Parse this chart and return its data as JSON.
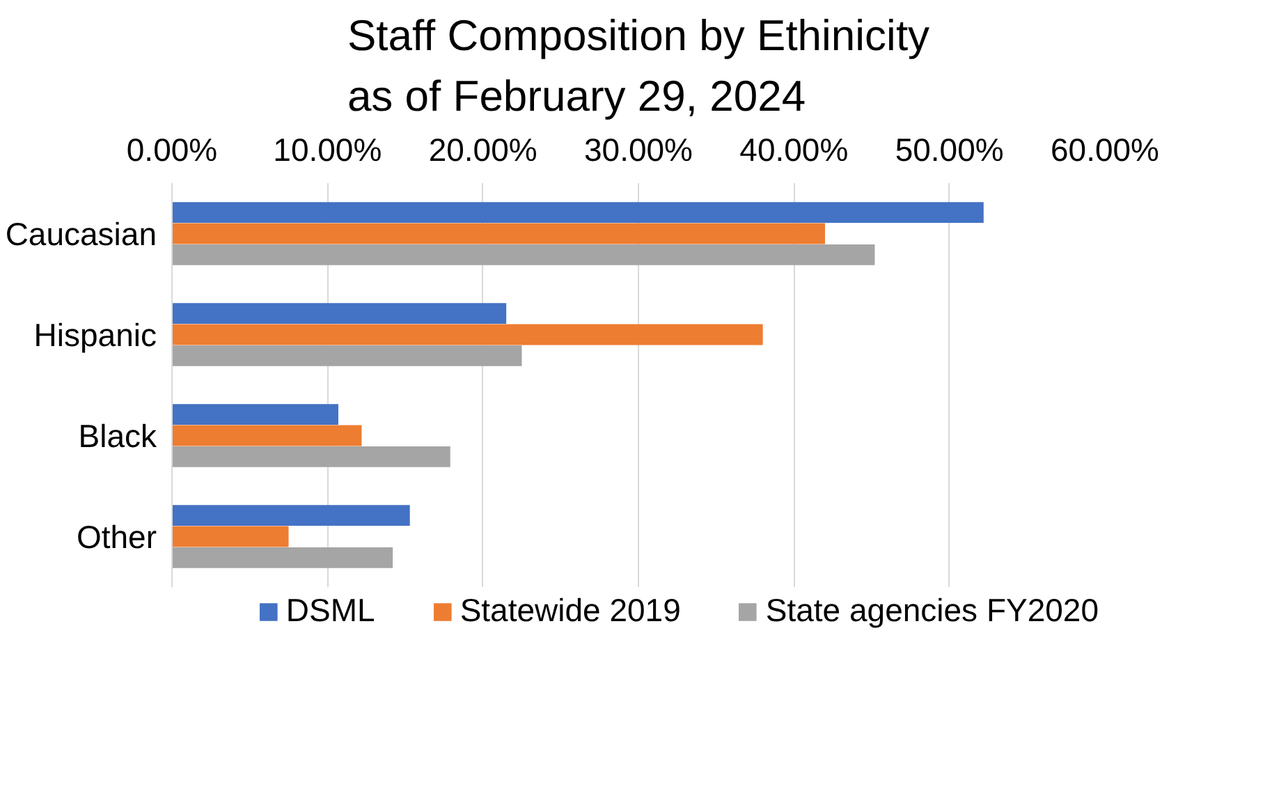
{
  "chart_data": {
    "type": "bar",
    "orientation": "horizontal",
    "title": "Staff Composition by Ethinicity\nas of February 29, 2024",
    "categories": [
      "Caucasian",
      "Hispanic",
      "Black",
      "Other"
    ],
    "series": [
      {
        "name": "DSML",
        "color": "#4472c4",
        "values": [
          52.2,
          21.5,
          10.7,
          15.3
        ]
      },
      {
        "name": "Statewide 2019",
        "color": "#ed7d31",
        "values": [
          42.0,
          38.0,
          12.2,
          7.5
        ]
      },
      {
        "name": "State agencies FY2020",
        "color": "#a5a5a5",
        "values": [
          45.2,
          22.5,
          17.9,
          14.2
        ]
      }
    ],
    "xlim": [
      0,
      60
    ],
    "xticks": [
      {
        "value": 0,
        "label": "0.00%"
      },
      {
        "value": 10,
        "label": "10.00%"
      },
      {
        "value": 20,
        "label": "20.00%"
      },
      {
        "value": 30,
        "label": "30.00%"
      },
      {
        "value": 40,
        "label": "40.00%"
      },
      {
        "value": 50,
        "label": "50.00%"
      },
      {
        "value": 60,
        "label": "60.00%"
      }
    ],
    "grid": "x",
    "legend": "bottom"
  }
}
